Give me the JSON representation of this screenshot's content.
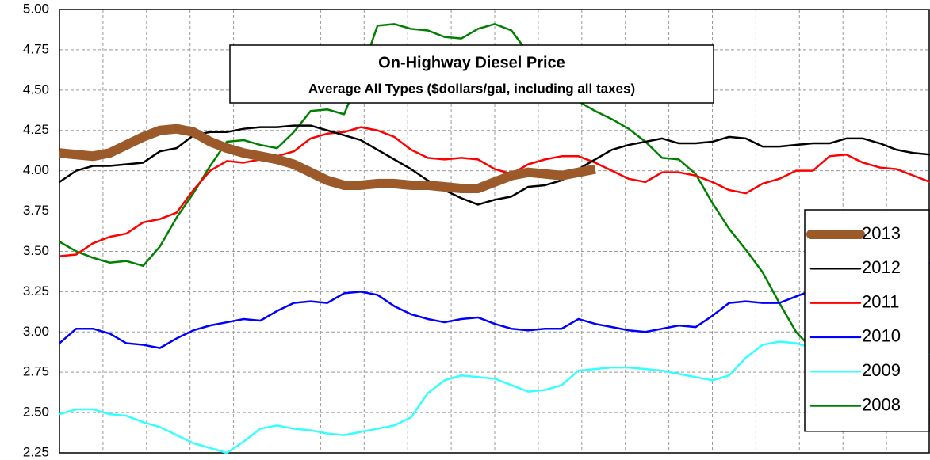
{
  "chart_data": {
    "type": "line",
    "title": "On-Highway Diesel Price",
    "subtitle": "Average All Types ($dollars/gal, including all taxes)",
    "ylim": [
      2.25,
      5.0
    ],
    "yticks": [
      {
        "value": 2.25,
        "label": "2.25"
      },
      {
        "value": 2.5,
        "label": "2.50"
      },
      {
        "value": 2.75,
        "label": "2.75"
      },
      {
        "value": 3.0,
        "label": "3.00"
      },
      {
        "value": 3.25,
        "label": "3.25"
      },
      {
        "value": 3.5,
        "label": "3.50"
      },
      {
        "value": 3.75,
        "label": "3.75"
      },
      {
        "value": 4.0,
        "label": "4.00"
      },
      {
        "value": 4.25,
        "label": "4.25"
      },
      {
        "value": 4.5,
        "label": "4.50"
      },
      {
        "value": 4.75,
        "label": "4.75"
      },
      {
        "value": 5.0,
        "label": "5.00"
      }
    ],
    "grid": true,
    "legend": "right",
    "series": [
      {
        "name": "2013",
        "color": "#9c5a2a",
        "width": 12,
        "values": [
          4.11,
          4.1,
          4.09,
          4.11,
          4.16,
          4.21,
          4.25,
          4.26,
          4.24,
          4.18,
          4.14,
          4.11,
          4.09,
          4.07,
          4.04,
          3.99,
          3.94,
          3.91,
          3.91,
          3.92,
          3.92,
          3.91,
          3.91,
          3.9,
          3.89,
          3.89,
          3.93,
          3.97,
          3.99,
          3.98,
          3.97,
          3.99,
          4.01,
          null,
          null,
          null,
          null,
          null,
          null,
          null,
          null,
          null,
          null,
          null,
          null,
          null,
          null,
          null,
          null,
          null,
          null,
          null,
          null
        ]
      },
      {
        "name": "2012",
        "color": "#000000",
        "width": 2.5,
        "values": [
          3.93,
          4.0,
          4.03,
          4.03,
          4.04,
          4.05,
          4.12,
          4.14,
          4.22,
          4.24,
          4.24,
          4.26,
          4.27,
          4.27,
          4.28,
          4.28,
          4.25,
          4.22,
          4.19,
          4.13,
          4.07,
          4.01,
          3.94,
          3.88,
          3.83,
          3.79,
          3.82,
          3.84,
          3.9,
          3.91,
          3.94,
          4.01,
          4.07,
          4.13,
          4.16,
          4.18,
          4.2,
          4.17,
          4.17,
          4.18,
          4.21,
          4.2,
          4.15,
          4.15,
          4.16,
          4.17,
          4.17,
          4.2,
          4.2,
          4.17,
          4.13,
          4.11,
          4.1
        ]
      },
      {
        "name": "2011",
        "color": "#ff0000",
        "width": 2.5,
        "values": [
          3.47,
          3.48,
          3.55,
          3.59,
          3.61,
          3.68,
          3.7,
          3.74,
          3.88,
          4.0,
          4.06,
          4.05,
          4.07,
          4.09,
          4.12,
          4.2,
          4.23,
          4.24,
          4.27,
          4.25,
          4.21,
          4.13,
          4.08,
          4.07,
          4.08,
          4.07,
          4.01,
          3.98,
          4.04,
          4.07,
          4.09,
          4.09,
          4.05,
          4.0,
          3.95,
          3.93,
          3.99,
          3.99,
          3.97,
          3.93,
          3.88,
          3.86,
          3.92,
          3.95,
          4.0,
          4.0,
          4.09,
          4.1,
          4.05,
          4.02,
          4.01,
          3.97,
          3.93
        ]
      },
      {
        "name": "2010",
        "color": "#0000ff",
        "width": 2.5,
        "values": [
          2.93,
          3.02,
          3.02,
          2.99,
          2.93,
          2.92,
          2.9,
          2.96,
          3.01,
          3.04,
          3.06,
          3.08,
          3.07,
          3.13,
          3.18,
          3.19,
          3.18,
          3.24,
          3.25,
          3.23,
          3.16,
          3.11,
          3.08,
          3.06,
          3.08,
          3.09,
          3.05,
          3.02,
          3.01,
          3.02,
          3.02,
          3.08,
          3.05,
          3.03,
          3.01,
          3.0,
          3.02,
          3.04,
          3.03,
          3.1,
          3.18,
          3.19,
          3.18,
          3.18,
          3.22,
          3.26,
          3.29,
          3.32,
          3.36,
          3.37,
          3.38,
          3.4,
          3.43
        ]
      },
      {
        "name": "2009",
        "color": "#33ffff",
        "width": 2.5,
        "values": [
          2.49,
          2.52,
          2.52,
          2.49,
          2.48,
          2.44,
          2.41,
          2.36,
          2.31,
          2.28,
          2.25,
          2.32,
          2.4,
          2.42,
          2.4,
          2.39,
          2.37,
          2.36,
          2.38,
          2.4,
          2.42,
          2.47,
          2.62,
          2.7,
          2.73,
          2.72,
          2.71,
          2.67,
          2.63,
          2.64,
          2.67,
          2.76,
          2.77,
          2.78,
          2.78,
          2.77,
          2.76,
          2.74,
          2.72,
          2.7,
          2.73,
          2.84,
          2.92,
          2.94,
          2.93,
          2.9,
          2.89,
          2.87,
          2.85,
          2.84,
          2.85,
          2.85,
          2.86
        ]
      },
      {
        "name": "2008",
        "color": "#008000",
        "width": 2.5,
        "values": [
          3.56,
          3.5,
          3.46,
          3.43,
          3.44,
          3.41,
          3.53,
          3.71,
          3.86,
          4.03,
          4.18,
          4.19,
          4.16,
          4.14,
          4.24,
          4.37,
          4.38,
          4.35,
          4.6,
          4.9,
          4.91,
          4.88,
          4.87,
          4.83,
          4.82,
          4.88,
          4.91,
          4.87,
          4.73,
          4.62,
          4.52,
          4.43,
          4.37,
          4.32,
          4.26,
          4.18,
          4.08,
          4.07,
          3.98,
          3.8,
          3.64,
          3.51,
          3.37,
          3.18,
          3.0,
          2.89,
          2.79,
          2.7,
          2.62,
          2.57,
          2.54,
          2.53,
          2.52
        ]
      }
    ]
  }
}
